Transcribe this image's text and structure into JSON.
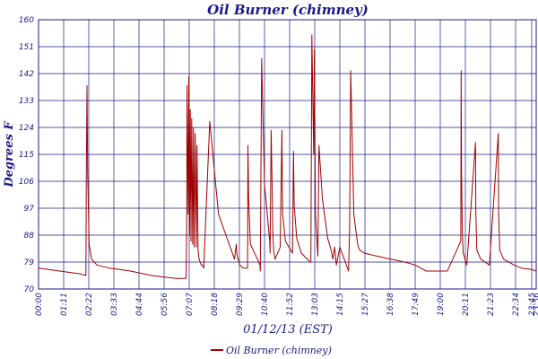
{
  "chart_data": {
    "type": "line",
    "title": "Oil Burner (chimney)",
    "xlabel": "01/12/13 (EST)",
    "ylabel": "Degrees F",
    "ylim": [
      70,
      160
    ],
    "yticks": [
      "70",
      "79",
      "88",
      "97",
      "106",
      "115",
      "124",
      "133",
      "142",
      "151",
      "160"
    ],
    "xticks": [
      "00:00",
      "01:11",
      "02:22",
      "03:33",
      "04:44",
      "05:56",
      "07:07",
      "08:18",
      "09:29",
      "10:40",
      "11:52",
      "13:03",
      "14:15",
      "15:27",
      "16:38",
      "17:49",
      "19:00",
      "20:11",
      "21:23",
      "22:34",
      "23:45",
      "23:56"
    ],
    "grid": true,
    "legend_position": "bottom",
    "colors": {
      "series": "#a00000",
      "grid": "#1a1a8c",
      "text": "#1a1a8c"
    },
    "series": [
      {
        "name": "Oil Burner (chimney)",
        "x": [
          "00:00",
          "01:00",
          "02:00",
          "02:14",
          "02:15",
          "02:17",
          "02:19",
          "02:23",
          "02:30",
          "02:45",
          "03:20",
          "04:20",
          "05:20",
          "06:30",
          "06:58",
          "07:00",
          "07:01",
          "07:04",
          "07:06",
          "07:08",
          "07:10",
          "07:12",
          "07:14",
          "07:17",
          "07:19",
          "07:21",
          "07:24",
          "07:27",
          "07:29",
          "07:32",
          "07:35",
          "07:38",
          "07:41",
          "07:44",
          "07:48",
          "08:05",
          "08:30",
          "09:15",
          "09:20",
          "09:21",
          "09:23",
          "09:30",
          "09:40",
          "09:52",
          "09:53",
          "09:55",
          "10:00",
          "10:20",
          "10:27",
          "10:28",
          "10:32",
          "10:40",
          "10:55",
          "10:56",
          "10:59",
          "11:03",
          "11:04",
          "11:06",
          "11:10",
          "11:25",
          "11:30",
          "11:32",
          "11:40",
          "12:00",
          "12:03",
          "12:05",
          "12:12",
          "12:25",
          "12:50",
          "12:52",
          "12:55",
          "13:00",
          "13:02",
          "13:05",
          "13:10",
          "13:12",
          "13:15",
          "13:25",
          "13:40",
          "13:50",
          "13:55",
          "14:00",
          "14:05",
          "14:15",
          "14:40",
          "14:43",
          "14:46",
          "14:55",
          "15:05",
          "15:08",
          "15:12",
          "15:25",
          "16:00",
          "16:40",
          "17:20",
          "17:49",
          "18:20",
          "19:20",
          "19:58",
          "19:59",
          "20:00",
          "20:02",
          "20:05",
          "20:15",
          "20:40",
          "20:41",
          "20:44",
          "20:55",
          "21:20",
          "21:45",
          "21:46",
          "21:49",
          "22:00",
          "22:30",
          "23:00",
          "23:45",
          "23:56"
        ],
        "values": [
          77,
          76,
          75,
          74.5,
          105,
          138,
          108,
          85,
          80,
          78,
          77,
          76,
          74.5,
          73.5,
          73.5,
          90,
          138,
          95,
          141,
          88,
          130,
          86,
          127,
          85,
          124,
          84,
          122,
          84,
          118,
          83,
          80,
          79,
          78,
          78,
          77,
          126,
          95,
          80,
          85,
          83,
          81,
          78,
          77,
          77,
          118,
          100,
          85,
          80,
          78,
          76,
          147,
          105,
          86,
          82,
          123,
          96,
          89,
          83,
          80,
          84,
          123,
          95,
          86,
          82,
          116,
          98,
          87,
          82,
          79,
          79,
          155,
          115,
          150,
          95,
          85,
          81,
          118,
          100,
          87,
          83,
          80,
          84,
          78,
          84,
          76,
          90,
          143,
          95,
          86,
          84,
          83,
          82,
          81,
          80,
          79,
          78,
          76,
          76,
          86,
          143,
          110,
          90,
          82,
          78,
          119,
          95,
          83,
          80,
          78,
          122,
          95,
          83,
          80,
          78,
          77,
          76.5,
          76
        ]
      }
    ]
  }
}
